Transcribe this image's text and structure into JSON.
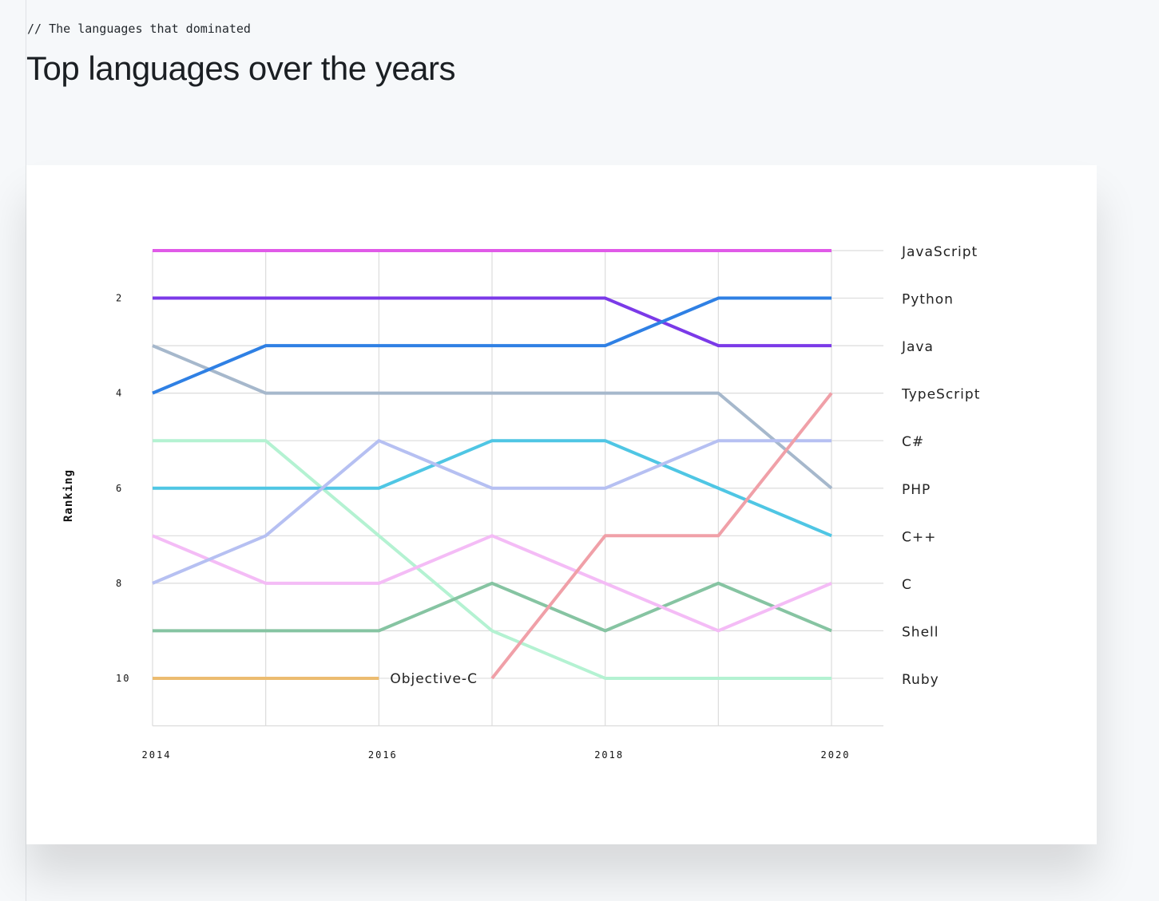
{
  "header": {
    "eyebrow": "// The languages that dominated",
    "title": "Top languages over the years"
  },
  "chart_data": {
    "type": "line",
    "title": "Top languages over the years",
    "xlabel": "",
    "ylabel": "Ranking",
    "x": [
      2014,
      2015,
      2016,
      2017,
      2018,
      2019,
      2020
    ],
    "x_tick_labels": [
      "2014",
      "2016",
      "2018",
      "2020"
    ],
    "y_tick_labels": [
      "2",
      "4",
      "6",
      "8",
      "10"
    ],
    "ylim": [
      11,
      1
    ],
    "y_inverted": true,
    "grid": true,
    "series": [
      {
        "name": "JavaScript",
        "color": "#e05ae8",
        "values": [
          1,
          1,
          1,
          1,
          1,
          1,
          1
        ]
      },
      {
        "name": "Python",
        "color": "#2f80e4",
        "values": [
          4,
          3,
          3,
          3,
          3,
          2,
          2
        ]
      },
      {
        "name": "Java",
        "color": "#7b3ae8",
        "values": [
          2,
          2,
          2,
          2,
          2,
          3,
          3
        ]
      },
      {
        "name": "TypeScript",
        "color": "#f0a0a8",
        "values": [
          null,
          null,
          null,
          10,
          7,
          7,
          4
        ]
      },
      {
        "name": "C#",
        "color": "#b6c0f2",
        "values": [
          8,
          7,
          5,
          6,
          6,
          5,
          5
        ]
      },
      {
        "name": "PHP",
        "color": "#a6b8cc",
        "values": [
          3,
          4,
          4,
          4,
          4,
          4,
          6
        ]
      },
      {
        "name": "C++",
        "color": "#4fc6e4",
        "values": [
          6,
          6,
          6,
          5,
          5,
          6,
          7
        ]
      },
      {
        "name": "C",
        "color": "#f4bcf6",
        "values": [
          7,
          8,
          8,
          7,
          8,
          9,
          8
        ]
      },
      {
        "name": "Shell",
        "color": "#86c4a2",
        "values": [
          9,
          9,
          9,
          8,
          9,
          8,
          9
        ]
      },
      {
        "name": "Ruby",
        "color": "#b4f2d2",
        "values": [
          5,
          5,
          7,
          9,
          10,
          10,
          10
        ]
      },
      {
        "name": "Objective-C",
        "color": "#ecbc70",
        "values": [
          10,
          10,
          10,
          null,
          null,
          null,
          null
        ],
        "inline_label": true
      }
    ]
  }
}
